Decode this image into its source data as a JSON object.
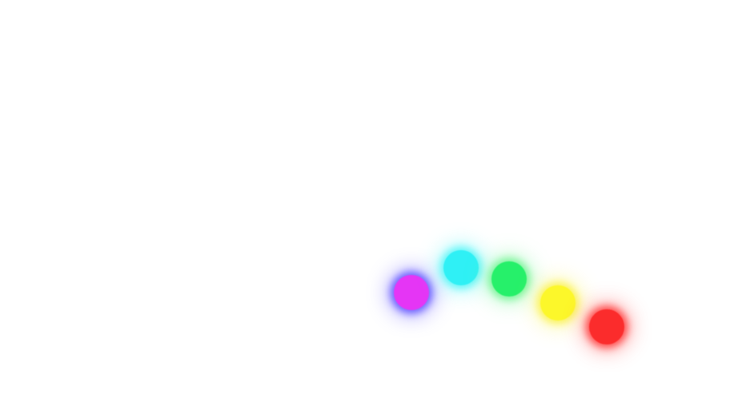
{
  "orbs": [
    {
      "name": "magenta",
      "color": "#e535f5",
      "glow": "#6a5cff"
    },
    {
      "name": "cyan",
      "color": "#2ff0f5",
      "glow": "#5ff6f8"
    },
    {
      "name": "green",
      "color": "#26f06a",
      "glow": "#7af59a"
    },
    {
      "name": "yellow",
      "color": "#fcf72a",
      "glow": "#fbf35a"
    },
    {
      "name": "red",
      "color": "#fb2c2c",
      "glow": "#ff4a4a"
    }
  ]
}
